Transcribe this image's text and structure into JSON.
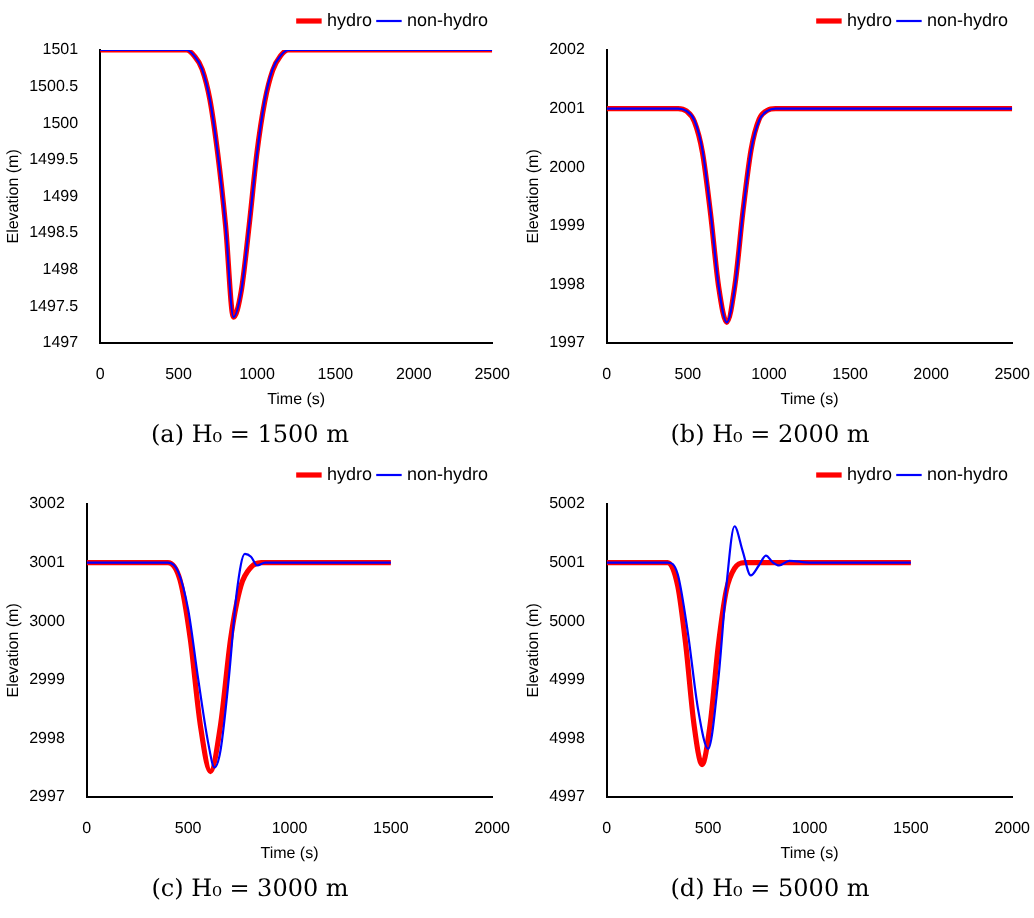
{
  "chart_data": [
    {
      "type": "line",
      "title": "(a) H₀ = 1500 m",
      "xlabel": "Time (s)",
      "ylabel": "Elevation (m)",
      "xlim": [
        0,
        2500
      ],
      "xticks": [
        0,
        500,
        1000,
        1500,
        2000,
        2500
      ],
      "ylim": [
        1497,
        1501
      ],
      "yticks": [
        1497,
        1497.5,
        1498,
        1498.5,
        1499,
        1499.5,
        1500,
        1500.5,
        1501
      ],
      "legend": "top right",
      "grid": false,
      "series": [
        {
          "name": "hydro",
          "color": "#ff0000",
          "x": [
            0,
            550,
            600,
            650,
            700,
            750,
            800,
            850,
            900,
            950,
            1000,
            1050,
            1100,
            1150,
            1200,
            2500
          ],
          "values": [
            1501,
            1501,
            1500.92,
            1500.74,
            1500.32,
            1499.58,
            1498.6,
            1497.35,
            1497.71,
            1498.6,
            1499.6,
            1500.3,
            1500.72,
            1500.92,
            1501,
            1501
          ]
        },
        {
          "name": "non-hydro",
          "color": "#0000ff",
          "x": [
            0,
            550,
            600,
            650,
            700,
            750,
            800,
            850,
            900,
            950,
            1000,
            1050,
            1100,
            1150,
            1200,
            2500
          ],
          "values": [
            1501,
            1501,
            1500.92,
            1500.74,
            1500.32,
            1499.58,
            1498.6,
            1497.35,
            1497.71,
            1498.6,
            1499.58,
            1500.32,
            1500.74,
            1500.92,
            1501,
            1501
          ]
        }
      ]
    },
    {
      "type": "line",
      "title": "(b) H₀ = 2000 m",
      "xlabel": "Time (s)",
      "ylabel": "Elevation (m)",
      "xlim": [
        0,
        2500
      ],
      "xticks": [
        0,
        500,
        1000,
        1500,
        2000,
        2500
      ],
      "ylim": [
        1997,
        2002
      ],
      "yticks": [
        1997,
        1998,
        1999,
        2000,
        2001,
        2002
      ],
      "legend": "top right",
      "grid": false,
      "series": [
        {
          "name": "hydro",
          "color": "#ff0000",
          "x": [
            0,
            440,
            490,
            540,
            590,
            640,
            690,
            740,
            790,
            840,
            890,
            940,
            990,
            1040,
            2500
          ],
          "values": [
            2001,
            2001,
            2000.96,
            2000.78,
            2000.25,
            1999.2,
            1997.95,
            1997.35,
            1997.98,
            1999.25,
            2000.3,
            2000.82,
            2000.97,
            2001,
            2001
          ]
        },
        {
          "name": "non-hydro",
          "color": "#0000ff",
          "x": [
            0,
            440,
            490,
            540,
            590,
            640,
            690,
            740,
            790,
            840,
            890,
            940,
            990,
            1040,
            2500
          ],
          "values": [
            2001,
            2001,
            2000.96,
            2000.8,
            2000.29,
            1999.23,
            1997.96,
            1997.35,
            1997.96,
            1999.23,
            2000.29,
            2000.8,
            2000.96,
            2001,
            2001
          ]
        }
      ]
    },
    {
      "type": "line",
      "title": "(c) H₀ = 3000 m",
      "xlabel": "Time (s)",
      "ylabel": "Elevation (m)",
      "xlim": [
        0,
        2000
      ],
      "xticks": [
        0,
        500,
        1000,
        1500,
        2000
      ],
      "ylim": [
        2997,
        3002
      ],
      "yticks": [
        2997,
        2998,
        2999,
        3000,
        3001,
        3002
      ],
      "legend": "top right",
      "grid": false,
      "series": [
        {
          "name": "hydro",
          "color": "#ff0000",
          "x": [
            0,
            400,
            460,
            510,
            560,
            610,
            660,
            710,
            760,
            810,
            860,
            1500
          ],
          "values": [
            3001,
            3001,
            3000.7,
            2999.71,
            2998.23,
            2997.43,
            2998.23,
            2999.71,
            3000.6,
            3000.92,
            3001,
            3001
          ]
        },
        {
          "name": "non-hydro",
          "color": "#0000ff",
          "x": [
            0,
            400,
            450,
            500,
            550,
            600,
            630,
            660,
            700,
            740,
            780,
            810,
            840,
            880,
            1500
          ],
          "values": [
            3001,
            3001,
            3000.85,
            3000.2,
            2999,
            2997.9,
            2997.5,
            2997.8,
            2999,
            3000.5,
            3001.15,
            3001.1,
            3000.95,
            3001,
            3001
          ]
        }
      ]
    },
    {
      "type": "line",
      "title": "(d) H₀ = 5000 m",
      "xlabel": "Time (s)",
      "ylabel": "Elevation (m)",
      "xlim": [
        0,
        2000
      ],
      "xticks": [
        0,
        500,
        1000,
        1500,
        2000
      ],
      "ylim": [
        4997,
        5002
      ],
      "yticks": [
        4997,
        4998,
        4999,
        5000,
        5001,
        5002
      ],
      "legend": "top right",
      "grid": false,
      "series": [
        {
          "name": "hydro",
          "color": "#ff0000",
          "x": [
            0,
            300,
            350,
            390,
            430,
            470,
            510,
            550,
            590,
            630,
            680,
            1500
          ],
          "values": [
            5001,
            5001,
            5000.6,
            4999.58,
            4998.24,
            4997.55,
            4998.24,
            4999.58,
            5000.53,
            5000.9,
            5001,
            5001
          ]
        },
        {
          "name": "non-hydro",
          "color": "#0000ff",
          "x": [
            0,
            300,
            350,
            400,
            450,
            500,
            550,
            590,
            630,
            670,
            710,
            750,
            785,
            820,
            850,
            900,
            1000,
            1500
          ],
          "values": [
            5001,
            5001,
            5000.8,
            4999.8,
            4998.5,
            4997.82,
            4999,
            5000.6,
            5001.62,
            5001.2,
            5000.78,
            5000.95,
            5001.12,
            5001,
            5000.95,
            5001.03,
            5001,
            5001
          ]
        }
      ]
    }
  ]
}
